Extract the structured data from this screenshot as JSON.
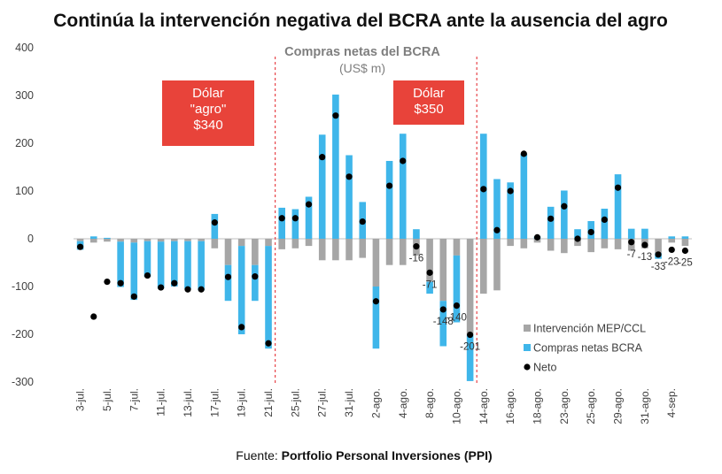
{
  "chart_data": {
    "type": "bar",
    "title": "Continúa la intervención negativa del BCRA ante la ausencia del agro",
    "subtitle": "Compras netas del BCRA",
    "unit": "(US$ m)",
    "ylim": [
      -300,
      400
    ],
    "yticks": [
      -300,
      -200,
      -100,
      0,
      100,
      200,
      300,
      400
    ],
    "categories": [
      "3-jul.",
      "4-jul.",
      "5-jul.",
      "6-jul.",
      "7-jul.",
      "10-jul.",
      "11-jul.",
      "12-jul.",
      "13-jul.",
      "14-jul.",
      "17-jul.",
      "18-jul.",
      "19-jul.",
      "20-jul.",
      "21-jul.",
      "24-jul.",
      "25-jul.",
      "26-jul.",
      "27-jul.",
      "28-jul.",
      "31-jul.",
      "1-ago.",
      "2-ago.",
      "3-ago.",
      "4-ago.",
      "7-ago.",
      "8-ago.",
      "9-ago.",
      "10-ago.",
      "11-ago.",
      "14-ago.",
      "15-ago.",
      "16-ago.",
      "17-ago.",
      "18-ago.",
      "22-ago.",
      "23-ago.",
      "24-ago.",
      "25-ago.",
      "28-ago.",
      "29-ago.",
      "30-ago.",
      "31-ago.",
      "1-sep.",
      "4-sep.",
      "5-sep."
    ],
    "xtick_labels": [
      "3-jul.",
      "",
      "5-jul.",
      "",
      "7-jul.",
      "",
      "11-jul.",
      "",
      "13-jul.",
      "",
      "17-jul.",
      "",
      "19-jul.",
      "",
      "21-jul.",
      "",
      "25-jul.",
      "",
      "27-jul.",
      "",
      "31-jul.",
      "",
      "2-ago.",
      "",
      "4-ago.",
      "",
      "8-ago.",
      "",
      "10-ago.",
      "",
      "14-ago.",
      "",
      "16-ago.",
      "",
      "18-ago.",
      "",
      "23-ago.",
      "",
      "25-ago.",
      "",
      "29-ago.",
      "",
      "31-ago.",
      "",
      "4-sep.",
      ""
    ],
    "series": [
      {
        "name": "Intervención MEP/CCL",
        "color": "#a6a6a6",
        "values": [
          -5,
          -8,
          -6,
          -6,
          -8,
          -5,
          -6,
          -5,
          -5,
          -5,
          -20,
          -55,
          -15,
          -55,
          -15,
          -22,
          -20,
          -15,
          -45,
          -45,
          -45,
          -40,
          -100,
          -55,
          -55,
          -35,
          -90,
          -130,
          -35,
          -201,
          -115,
          -108,
          -15,
          -20,
          -8,
          -25,
          -30,
          -15,
          -28,
          -20,
          -22,
          -25,
          -20,
          -30,
          -8,
          -15
        ]
      },
      {
        "name": "Compras netas BCRA",
        "color": "#3fb6ea",
        "values": [
          -18,
          5,
          2,
          -95,
          -120,
          -75,
          -98,
          -95,
          -100,
          -103,
          52,
          -75,
          -185,
          -75,
          -215,
          65,
          62,
          88,
          218,
          302,
          175,
          77,
          -130,
          163,
          220,
          20,
          -25,
          -95,
          -140,
          -97,
          220,
          125,
          118,
          178,
          5,
          67,
          101,
          20,
          37,
          63,
          135,
          21,
          21,
          -12,
          5,
          5
        ]
      },
      {
        "name": "Neto",
        "color": "#000000",
        "values": [
          -17,
          -163,
          -90,
          -93,
          -121,
          -77,
          -102,
          -93,
          -106,
          -106,
          34,
          -80,
          -185,
          -79,
          -219,
          43,
          43,
          72,
          171,
          258,
          130,
          36,
          -131,
          111,
          163,
          -16,
          -71,
          -148,
          -140,
          -201,
          104,
          18,
          100,
          178,
          3,
          42,
          68,
          0,
          14,
          40,
          107,
          -7,
          -13,
          -33,
          -23,
          -25
        ]
      }
    ],
    "data_labels": [
      {
        "index": 25,
        "text": "-16"
      },
      {
        "index": 26,
        "text": "-71"
      },
      {
        "index": 27,
        "text": "-148"
      },
      {
        "index": 28,
        "text": "-140"
      },
      {
        "index": 29,
        "text": "-201"
      },
      {
        "index": 41,
        "text": "-7"
      },
      {
        "index": 42,
        "text": "-13"
      },
      {
        "index": 43,
        "text": "-33"
      },
      {
        "index": 44,
        "text": "-23"
      },
      {
        "index": 45,
        "text": "-25"
      }
    ],
    "vertical_markers": [
      {
        "between": [
          14,
          15
        ],
        "color": "#e8454a",
        "style": "dashed"
      },
      {
        "between": [
          29,
          30
        ],
        "color": "#e8454a",
        "style": "dashed"
      }
    ],
    "annotations": [
      {
        "lines": [
          "Dólar",
          "\"agro\"",
          "$340"
        ],
        "color": "#e8433a",
        "placement": "upper-left"
      },
      {
        "lines": [
          "Dólar",
          "$350"
        ],
        "color": "#e8433a",
        "placement": "upper-center"
      }
    ],
    "legend": {
      "placement": "bottom-right",
      "entries": [
        "Intervención MEP/CCL",
        "Compras netas BCRA",
        "Neto"
      ]
    },
    "source_prefix": "Fuente: ",
    "source_bold": "Portfolio Personal Inversiones (PPI)"
  }
}
